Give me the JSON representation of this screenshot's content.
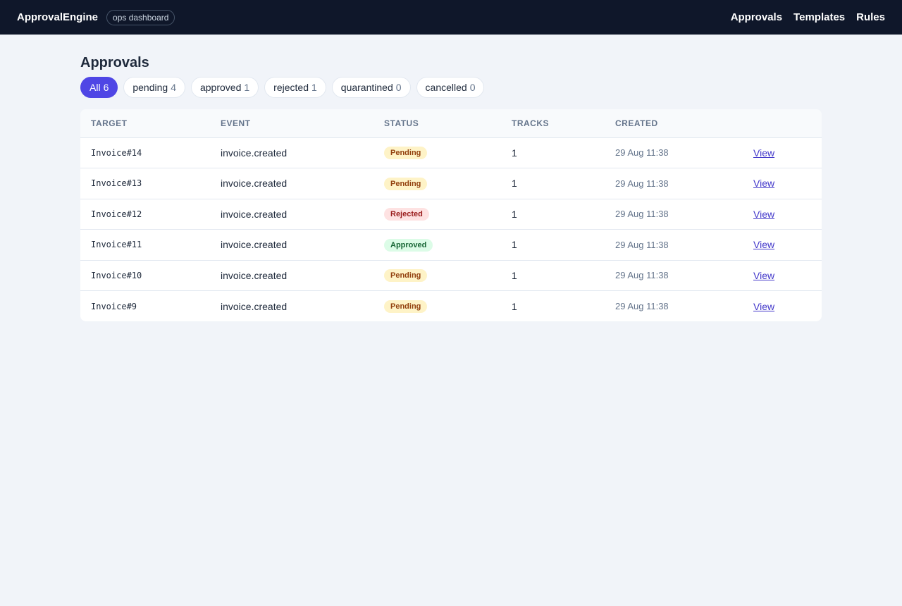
{
  "header": {
    "brand": "ApprovalEngine",
    "badge": "ops dashboard",
    "nav": [
      "Approvals",
      "Templates",
      "Rules"
    ]
  },
  "page": {
    "title": "Approvals"
  },
  "filters": [
    {
      "label": "All",
      "count": "6",
      "active": true
    },
    {
      "label": "pending",
      "count": "4",
      "active": false
    },
    {
      "label": "approved",
      "count": "1",
      "active": false
    },
    {
      "label": "rejected",
      "count": "1",
      "active": false
    },
    {
      "label": "quarantined",
      "count": "0",
      "active": false
    },
    {
      "label": "cancelled",
      "count": "0",
      "active": false
    }
  ],
  "table": {
    "columns": [
      "TARGET",
      "EVENT",
      "STATUS",
      "TRACKS",
      "CREATED",
      ""
    ],
    "rows": [
      {
        "target": "Invoice#14",
        "event": "invoice.created",
        "status": "Pending",
        "tracks": "1",
        "created": "29 Aug 11:38",
        "action": "View"
      },
      {
        "target": "Invoice#13",
        "event": "invoice.created",
        "status": "Pending",
        "tracks": "1",
        "created": "29 Aug 11:38",
        "action": "View"
      },
      {
        "target": "Invoice#12",
        "event": "invoice.created",
        "status": "Rejected",
        "tracks": "1",
        "created": "29 Aug 11:38",
        "action": "View"
      },
      {
        "target": "Invoice#11",
        "event": "invoice.created",
        "status": "Approved",
        "tracks": "1",
        "created": "29 Aug 11:38",
        "action": "View"
      },
      {
        "target": "Invoice#10",
        "event": "invoice.created",
        "status": "Pending",
        "tracks": "1",
        "created": "29 Aug 11:38",
        "action": "View"
      },
      {
        "target": "Invoice#9",
        "event": "invoice.created",
        "status": "Pending",
        "tracks": "1",
        "created": "29 Aug 11:38",
        "action": "View"
      }
    ]
  },
  "status_colors": {
    "Pending": {
      "bg": "#fef3c7",
      "fg": "#92400e"
    },
    "Rejected": {
      "bg": "#fee2e2",
      "fg": "#991b1b"
    },
    "Approved": {
      "bg": "#dcfce7",
      "fg": "#166534"
    }
  }
}
